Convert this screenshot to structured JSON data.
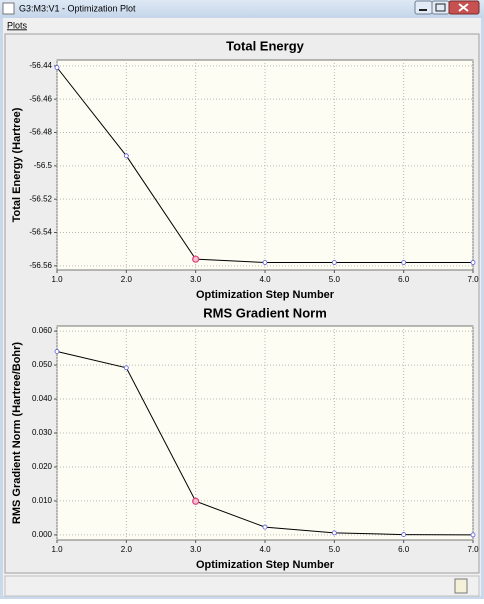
{
  "window": {
    "title": "G3:M3:V1 - Optimization Plot"
  },
  "menu": [
    "Plots"
  ],
  "chart_data": [
    {
      "type": "line",
      "title": "Total Energy",
      "x_label": "Optimization Step Number",
      "y_label": "Total Energy (Hartree)",
      "x": [
        1,
        2,
        3,
        4,
        5,
        6,
        7
      ],
      "series": [
        {
          "name": "Total Energy",
          "color": "#000000",
          "values": [
            -56.441,
            -56.494,
            -56.556,
            -56.558,
            -56.558,
            -56.558,
            -56.558
          ]
        }
      ],
      "marker_color": "#5a5ad8",
      "highlight_index": 2,
      "highlight_color": "#e0407a",
      "xlim": [
        1,
        7
      ],
      "xticks": [
        {
          "value": 1,
          "label": "1.0"
        },
        {
          "value": 2,
          "label": "2.0"
        },
        {
          "value": 3,
          "label": "3.0"
        },
        {
          "value": 4,
          "label": "4.0"
        },
        {
          "value": 5,
          "label": "5.0"
        },
        {
          "value": 6,
          "label": "6.0"
        },
        {
          "value": 7,
          "label": "7.0"
        }
      ],
      "ylim": [
        -56.5625,
        -56.4365
      ],
      "yticks": [
        -56.56,
        -56.54,
        -56.52,
        -56.5,
        -56.48,
        -56.46,
        -56.44
      ],
      "grid": true
    },
    {
      "type": "line",
      "title": "RMS Gradient Norm",
      "x_label": "Optimization Step Number",
      "y_label": "RMS Gradient Norm (Hartree/Bohr)",
      "x": [
        1,
        2,
        3,
        4,
        5,
        6,
        7
      ],
      "series": [
        {
          "name": "RMS Gradient Norm",
          "color": "#000000",
          "values": [
            0.054,
            0.0492,
            0.0099,
            0.0023,
            0.0006,
            0.0001,
            0.0
          ]
        }
      ],
      "marker_color": "#5a5ad8",
      "highlight_index": 2,
      "highlight_color": "#e0407a",
      "xlim": [
        1,
        7
      ],
      "xticks": [
        {
          "value": 1,
          "label": "1.0"
        },
        {
          "value": 2,
          "label": "2.0"
        },
        {
          "value": 3,
          "label": "3.0"
        },
        {
          "value": 4,
          "label": "4.0"
        },
        {
          "value": 5,
          "label": "5.0"
        },
        {
          "value": 6,
          "label": "6.0"
        },
        {
          "value": 7,
          "label": "7.0"
        }
      ],
      "ylim": [
        -0.0015,
        0.0615
      ],
      "yticks": [
        {
          "value": 0,
          "label": "0.000"
        },
        {
          "value": 0.01,
          "label": "0.010"
        },
        {
          "value": 0.02,
          "label": "0.020"
        },
        {
          "value": 0.03,
          "label": "0.030"
        },
        {
          "value": 0.04,
          "label": "0.040"
        },
        {
          "value": 0.05,
          "label": "0.050"
        },
        {
          "value": 0.06,
          "label": "0.060"
        }
      ],
      "grid": true
    }
  ]
}
